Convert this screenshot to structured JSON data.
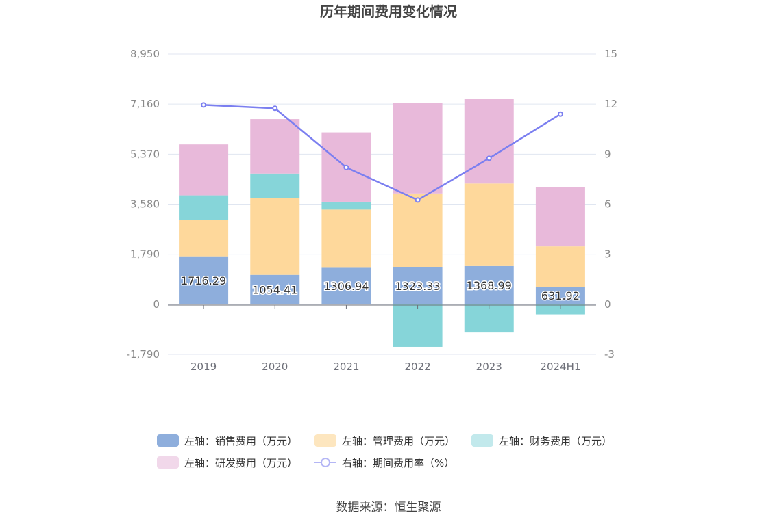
{
  "chart_data": {
    "type": "bar",
    "title": "历年期间费用变化情况",
    "categories": [
      "2019",
      "2020",
      "2021",
      "2022",
      "2023",
      "2024H1"
    ],
    "stacked": true,
    "left_axis": {
      "ticks": [
        "-1,790",
        "0",
        "1,790",
        "3,580",
        "5,370",
        "7,160",
        "8,950"
      ],
      "ylim": [
        -1790,
        8950
      ]
    },
    "right_axis": {
      "ticks": [
        "-3",
        "0",
        "3",
        "6",
        "9",
        "12",
        "15"
      ],
      "ylim": [
        -3,
        15
      ]
    },
    "series": [
      {
        "name": "左轴：销售费用（万元）",
        "axis": "left",
        "color": "#8eaedc",
        "values": [
          1716.29,
          1054.41,
          1306.94,
          1323.33,
          1368.99,
          631.92
        ],
        "labels": [
          "1716.29",
          "1054.41",
          "1306.94",
          "1323.33",
          "1368.99",
          "631.92"
        ]
      },
      {
        "name": "左轴：管理费用（万元）",
        "axis": "left",
        "color": "#fed89b",
        "values": [
          1290,
          2740,
          2080,
          2640,
          2950,
          1440
        ]
      },
      {
        "name": "左轴：财务费用（万元）",
        "axis": "left",
        "color": "#86d5d9",
        "values": [
          890,
          880,
          280,
          -1520,
          -1010,
          -360
        ]
      },
      {
        "name": "左轴：研发费用（万元）",
        "axis": "left",
        "color": "#e8b9da",
        "values": [
          1820,
          1950,
          2480,
          3240,
          3040,
          2130
        ]
      },
      {
        "name": "右轴：期间费用率（%）",
        "axis": "right",
        "type": "line",
        "color": "#7b7ff0",
        "values": [
          11.95,
          11.75,
          8.2,
          6.25,
          8.75,
          11.4
        ]
      }
    ],
    "legend_position": "bottom",
    "source": "数据来源：恒生聚源"
  }
}
